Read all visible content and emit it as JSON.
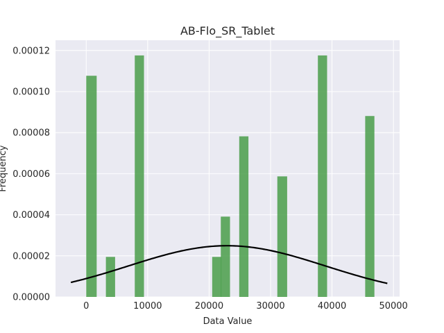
{
  "chart_data": {
    "type": "bar",
    "title": "AB-Flo_SR_Tablet",
    "xlabel": "Data Value",
    "ylabel": "Frequency",
    "xlim": [
      -5000,
      51000
    ],
    "ylim": [
      0,
      0.000125
    ],
    "grid": true,
    "x_ticks": [
      0,
      10000,
      20000,
      30000,
      40000,
      50000
    ],
    "y_ticks": [
      0,
      2e-05,
      4e-05,
      6e-05,
      8e-05,
      0.0001,
      0.00012
    ],
    "y_tick_labels": [
      "0.00000",
      "0.00002",
      "0.00004",
      "0.00006",
      "0.00008",
      "0.00010",
      "0.00012"
    ],
    "bars": [
      {
        "x0": 0,
        "x1": 1700,
        "value": 0.0001077
      },
      {
        "x0": 3200,
        "x1": 4700,
        "value": 1.95e-05
      },
      {
        "x0": 7900,
        "x1": 9400,
        "value": 0.0001176
      },
      {
        "x0": 20500,
        "x1": 22000,
        "value": 1.95e-05
      },
      {
        "x0": 21900,
        "x1": 23400,
        "value": 3.91e-05
      },
      {
        "x0": 24900,
        "x1": 26400,
        "value": 7.82e-05
      },
      {
        "x0": 31100,
        "x1": 32700,
        "value": 5.87e-05
      },
      {
        "x0": 37700,
        "x1": 39200,
        "value": 0.0001176
      },
      {
        "x0": 45400,
        "x1": 46900,
        "value": 8.81e-05
      }
    ],
    "bar_color": "#4a9e4a",
    "curve": {
      "type": "normal_pdf",
      "mean": 22900,
      "std": 16000,
      "x_range": [
        -2500,
        49000
      ],
      "color": "#000000"
    }
  }
}
